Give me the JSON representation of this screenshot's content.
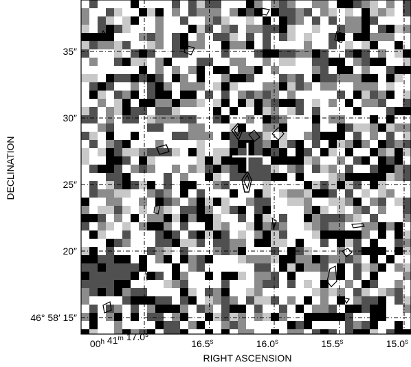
{
  "figure": {
    "xlabel": "RIGHT ASCENSION",
    "ylabel": "DECLINATION",
    "x_ticks": [
      {
        "label": "00",
        "sup1": "h",
        "mid": " 41",
        "sup2": "m",
        "tail": " 17.0",
        "sup3": "s",
        "value_s": 17.0
      },
      {
        "label": "16.5",
        "sup1": "s",
        "value_s": 16.5
      },
      {
        "label": "16.0",
        "sup1": "s",
        "value_s": 16.0
      },
      {
        "label": "15.5",
        "sup1": "s",
        "value_s": 15.5
      },
      {
        "label": "15.0",
        "sup1": "s",
        "value_s": 15.0
      }
    ],
    "y_ticks": [
      {
        "label": "35″",
        "value_arcsec": 35
      },
      {
        "label": "30″",
        "value_arcsec": 30
      },
      {
        "label": "25″",
        "value_arcsec": 25
      },
      {
        "label": "20″",
        "value_arcsec": 20
      },
      {
        "label": "46° 58′ 15″",
        "value_arcsec": 15
      }
    ],
    "colors": {
      "frame": "#000000",
      "cross": "#ffffff",
      "contour": "#000000",
      "grid": "#000000"
    }
  }
}
